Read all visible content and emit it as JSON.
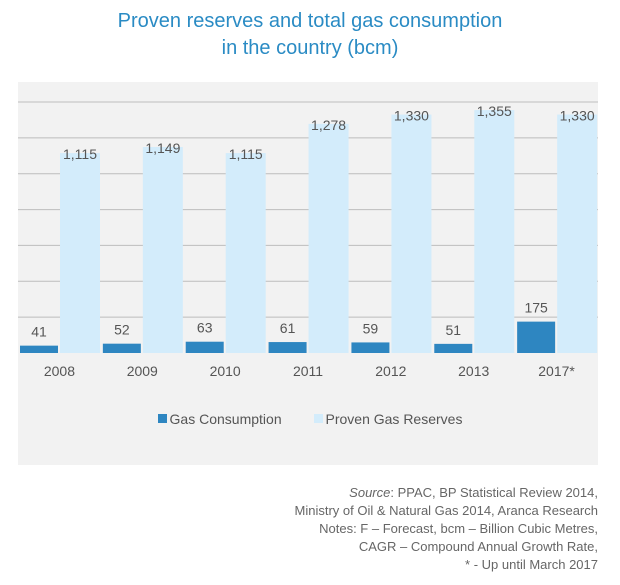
{
  "title_lines": [
    "Proven reserves and total gas consumption",
    "in the country (bcm)"
  ],
  "colors": {
    "title": "#2a8bc4",
    "consumption": "#2e86c1",
    "reserves": "#d3ecfb",
    "panel": "#f2f2f2",
    "grid": "#bdbdbd",
    "label": "#555555"
  },
  "chart_data": {
    "type": "bar",
    "title": "Proven reserves and total gas consumption in the country (bcm)",
    "categories": [
      "2008",
      "2009",
      "2010",
      "2011",
      "2012",
      "2013",
      "2017*"
    ],
    "series": [
      {
        "name": "Gas Consumption",
        "values": [
          41,
          52,
          63,
          61,
          59,
          51,
          175
        ],
        "labels": [
          "41",
          "52",
          "63",
          "61",
          "59",
          "51",
          "175"
        ]
      },
      {
        "name": "Proven Gas Reserves",
        "values": [
          1115,
          1149,
          1115,
          1278,
          1330,
          1355,
          1330
        ],
        "labels": [
          "1,115",
          "1,149",
          "1,115",
          "1,278",
          "1,330",
          "1,355",
          "1,330"
        ]
      }
    ],
    "ylim": [
      0,
      1400
    ],
    "grid": true,
    "legend_position": "bottom"
  },
  "notes": {
    "source_label": "Source",
    "source_text": ": PPAC, BP Statistical Review 2014,",
    "lines": [
      "Ministry of Oil & Natural Gas 2014, Aranca Research",
      "Notes: F – Forecast, bcm – Billion Cubic Metres,",
      "CAGR – Compound Annual Growth Rate,",
      "* - Up until March 2017"
    ]
  }
}
